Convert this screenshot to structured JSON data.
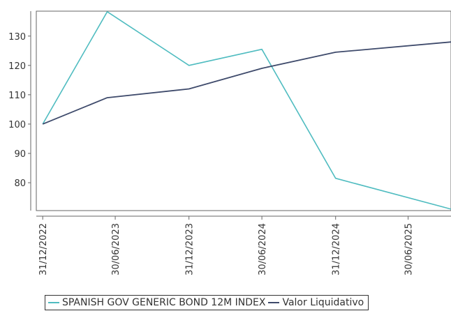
{
  "chart_data": {
    "type": "line",
    "x": [
      "2022-12-31",
      "2023-06-10",
      "2023-12-31",
      "2024-06-30",
      "2024-12-31",
      "2025-06-30",
      "2025-10-15"
    ],
    "series_points": [
      {
        "name": "SPANISH GOV GENERIC BOND 12M INDEX",
        "color": "#4fbcc0",
        "points": [
          [
            "2022-12-31",
            100
          ],
          [
            "2023-06-10",
            138.3
          ],
          [
            "2023-12-31",
            120
          ],
          [
            "2024-06-30",
            125.5
          ],
          [
            "2024-12-31",
            81.5
          ],
          [
            "2025-10-15",
            71
          ]
        ]
      },
      {
        "name": "Valor Liquidativo",
        "color": "#3e4a6b",
        "points": [
          [
            "2022-12-31",
            100
          ],
          [
            "2023-06-10",
            109
          ],
          [
            "2023-12-31",
            112
          ],
          [
            "2024-06-30",
            119
          ],
          [
            "2024-12-31",
            124.5
          ],
          [
            "2025-10-15",
            128
          ]
        ]
      }
    ],
    "x_range": [
      "2022-12-15",
      "2025-10-15"
    ],
    "y_range": [
      70.5,
      138.5
    ],
    "x_ticks": [
      {
        "date": "2022-12-31",
        "label": "31/12/2022"
      },
      {
        "date": "2023-06-30",
        "label": "30/06/2023"
      },
      {
        "date": "2023-12-31",
        "label": "31/12/2023"
      },
      {
        "date": "2024-06-30",
        "label": "30/06/2024"
      },
      {
        "date": "2024-12-31",
        "label": "31/12/2024"
      },
      {
        "date": "2025-06-30",
        "label": "30/06/2025"
      }
    ],
    "y_ticks": [
      80,
      90,
      100,
      110,
      120,
      130
    ],
    "grid": false,
    "legend_position": "bottom"
  }
}
